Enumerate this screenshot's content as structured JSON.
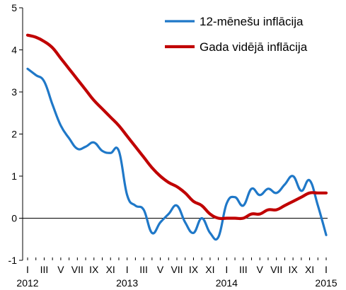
{
  "chart_data": {
    "type": "line",
    "title": "",
    "xlabel": "",
    "ylabel": "",
    "ylim": [
      -1,
      5
    ],
    "yticks": [
      "5",
      "4",
      "3",
      "2",
      "1",
      "0",
      "-1"
    ],
    "xticks": [
      "I",
      "III",
      "V",
      "VII",
      "IX",
      "XI",
      "I",
      "III",
      "V",
      "VII",
      "IX",
      "XI",
      "I",
      "III",
      "V",
      "VII",
      "IX",
      "XI",
      "I"
    ],
    "years": [
      "2012",
      "2013",
      "2014",
      "2015"
    ],
    "grid": false,
    "legend_position": "top-right",
    "x": [
      "2012-01",
      "2012-02",
      "2012-03",
      "2012-04",
      "2012-05",
      "2012-06",
      "2012-07",
      "2012-08",
      "2012-09",
      "2012-10",
      "2012-11",
      "2012-12",
      "2013-01",
      "2013-02",
      "2013-03",
      "2013-04",
      "2013-05",
      "2013-06",
      "2013-07",
      "2013-08",
      "2013-09",
      "2013-10",
      "2013-11",
      "2013-12",
      "2014-01",
      "2014-02",
      "2014-03",
      "2014-04",
      "2014-05",
      "2014-06",
      "2014-07",
      "2014-08",
      "2014-09",
      "2014-10",
      "2014-11",
      "2014-12",
      "2015-01"
    ],
    "series": [
      {
        "name": "12-mēnešu inflācija",
        "color": "#1f78c8",
        "values": [
          3.55,
          3.4,
          3.25,
          2.7,
          2.2,
          1.9,
          1.65,
          1.7,
          1.8,
          1.6,
          1.55,
          1.6,
          0.55,
          0.3,
          0.2,
          -0.35,
          -0.1,
          0.1,
          0.3,
          -0.1,
          -0.35,
          0.0,
          -0.35,
          -0.45,
          0.35,
          0.5,
          0.3,
          0.7,
          0.55,
          0.7,
          0.6,
          0.8,
          1.0,
          0.65,
          0.9,
          0.3,
          -0.4
        ]
      },
      {
        "name": "Gada vidējā inflācija",
        "color": "#c00000",
        "values": [
          4.35,
          4.3,
          4.2,
          4.05,
          3.8,
          3.55,
          3.3,
          3.05,
          2.8,
          2.6,
          2.4,
          2.2,
          1.95,
          1.7,
          1.45,
          1.2,
          1.0,
          0.85,
          0.75,
          0.6,
          0.4,
          0.3,
          0.1,
          0.0,
          0.0,
          0.0,
          0.0,
          0.1,
          0.1,
          0.2,
          0.2,
          0.3,
          0.4,
          0.5,
          0.6,
          0.6,
          0.6
        ]
      }
    ]
  }
}
